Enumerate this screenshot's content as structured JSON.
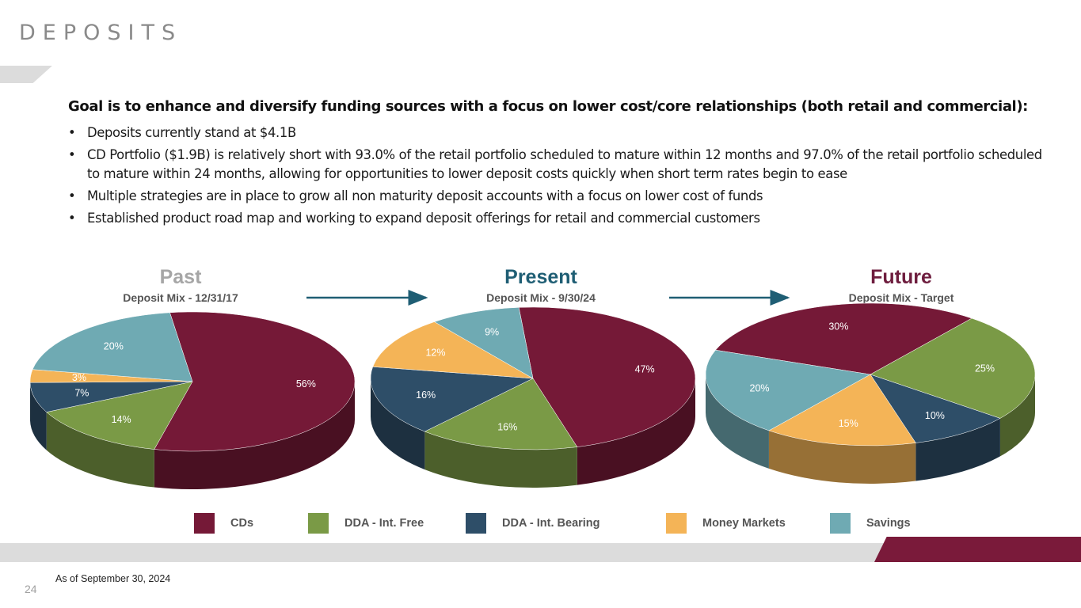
{
  "page": {
    "title": "DEPOSITS",
    "footnote": "As of September 30, 2024",
    "page_number": "24"
  },
  "goal": "Goal is to enhance and diversify funding sources with a focus on lower cost/core relationships (both retail and commercial):",
  "bullets": [
    "Deposits currently stand at $4.1B",
    "CD Portfolio ($1.9B) is relatively short with 93.0% of the retail portfolio scheduled to mature within 12 months and 97.0% of the retail portfolio scheduled to mature within 24 months, allowing for opportunities to lower deposit costs quickly when short term rates begin to ease",
    "Multiple strategies are in place to grow all non maturity deposit accounts with a focus on lower cost of funds",
    "Established product road map and working to expand deposit offerings for retail and commercial customers"
  ],
  "colors": {
    "CDs": "#751937",
    "DDA - Int. Free": "#7a9a46",
    "DDA - Int. Bearing": "#2e4e68",
    "Money Markets": "#f4b457",
    "Savings": "#6faab3"
  },
  "chart_data": [
    {
      "type": "pie",
      "title": "Past",
      "title_color": "#a6a6a6",
      "subtitle": "Deposit Mix - 12/31/17",
      "categories": [
        "CDs",
        "DDA - Int. Free",
        "DDA - Int. Bearing",
        "Money Markets",
        "Savings"
      ],
      "values": [
        56,
        14,
        7,
        3,
        20
      ],
      "labels": [
        "56%",
        "14%",
        "7%",
        "3%",
        "20%"
      ]
    },
    {
      "type": "pie",
      "title": "Present",
      "title_color": "#1f5e74",
      "subtitle": "Deposit Mix - 9/30/24",
      "categories": [
        "CDs",
        "DDA - Int. Free",
        "DDA - Int. Bearing",
        "Money Markets",
        "Savings"
      ],
      "values": [
        47,
        16,
        16,
        12,
        9
      ],
      "labels": [
        "47%",
        "16%",
        "16%",
        "12%",
        "9%"
      ]
    },
    {
      "type": "pie",
      "title": "Future",
      "title_color": "#6e1d3e",
      "subtitle": "Deposit Mix - Target",
      "categories": [
        "CDs",
        "DDA - Int. Free",
        "DDA - Int. Bearing",
        "Money Markets",
        "Savings"
      ],
      "values": [
        30,
        25,
        10,
        15,
        20
      ],
      "labels": [
        "30%",
        "25%",
        "10%",
        "15%",
        "20%"
      ]
    }
  ],
  "legend": [
    "CDs",
    "DDA - Int. Free",
    "DDA - Int. Bearing",
    "Money Markets",
    "Savings"
  ]
}
